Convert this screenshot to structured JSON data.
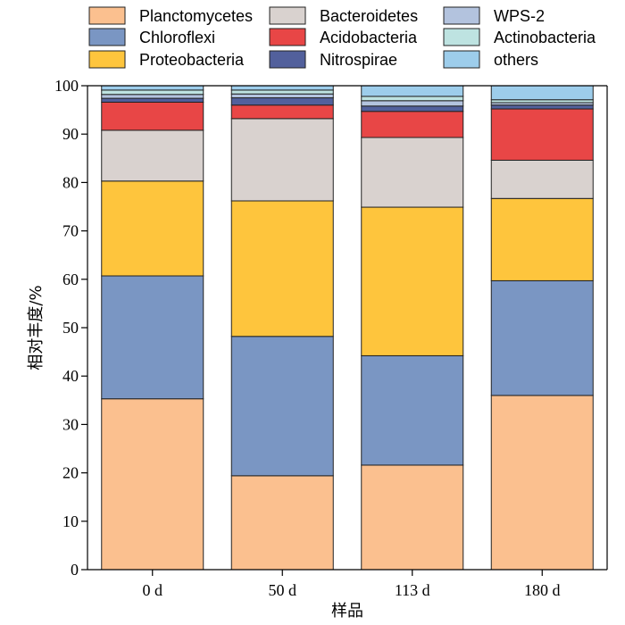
{
  "chart_data": {
    "type": "bar",
    "stacked": true,
    "categories": [
      "0 d",
      "50 d",
      "113 d",
      "180 d"
    ],
    "xlabel": "样品",
    "ylabel": "相对丰度/%",
    "ylim": [
      0,
      100
    ],
    "yticks": [
      "0",
      "10",
      "20",
      "30",
      "40",
      "50",
      "60",
      "70",
      "80",
      "90",
      "100"
    ],
    "grid": false,
    "legend_position": "top",
    "series": [
      {
        "name": "Planctomycetes",
        "color": "#FBC08F",
        "values": [
          35.3,
          19.4,
          21.6,
          36.0
        ]
      },
      {
        "name": "Chloroflexi",
        "color": "#7A96C3",
        "values": [
          25.4,
          28.8,
          22.6,
          23.7
        ]
      },
      {
        "name": "Proteobacteria",
        "color": "#FEC53D",
        "values": [
          19.6,
          28.0,
          30.7,
          17.0
        ]
      },
      {
        "name": "Bacteroidetes",
        "color": "#D9D2CF",
        "values": [
          10.5,
          17.0,
          14.4,
          7.9
        ]
      },
      {
        "name": "Acidobacteria",
        "color": "#E84646",
        "values": [
          5.8,
          2.8,
          5.4,
          10.6
        ]
      },
      {
        "name": "Nitrospirae",
        "color": "#52609C",
        "values": [
          0.8,
          1.5,
          1.1,
          0.8
        ]
      },
      {
        "name": "WPS-2",
        "color": "#B3C3DE",
        "values": [
          0.8,
          0.8,
          1.1,
          0.5
        ]
      },
      {
        "name": "Actinobacteria",
        "color": "#BEE3E1",
        "values": [
          0.9,
          0.8,
          0.9,
          0.6
        ]
      },
      {
        "name": "others",
        "color": "#9DCDEB",
        "values": [
          0.9,
          0.9,
          2.2,
          2.9
        ]
      }
    ]
  }
}
